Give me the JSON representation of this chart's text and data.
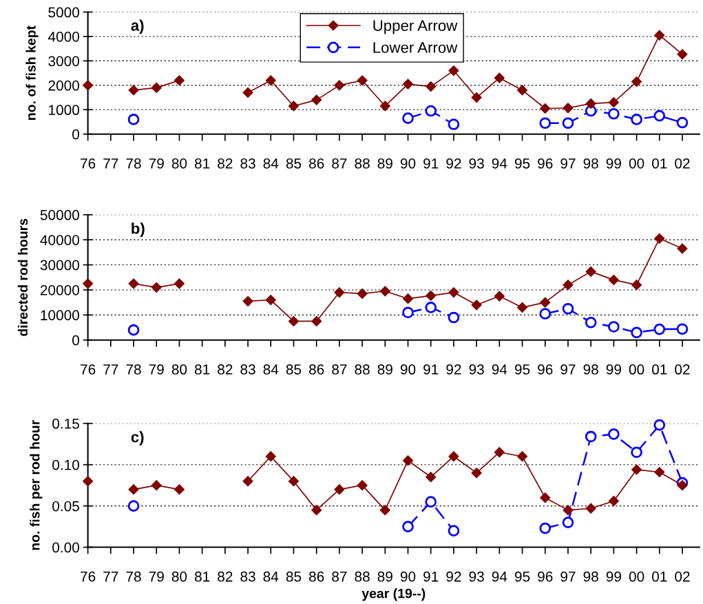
{
  "chart_data": [
    {
      "type": "line",
      "title": "a)",
      "ylabel": "no. of fish kept",
      "categories": [
        "76",
        "77",
        "78",
        "79",
        "80",
        "81",
        "82",
        "83",
        "84",
        "85",
        "86",
        "87",
        "88",
        "89",
        "90",
        "91",
        "92",
        "93",
        "94",
        "95",
        "96",
        "97",
        "98",
        "99",
        "00",
        "01",
        "02"
      ],
      "series": [
        {
          "name": "Upper Arrow",
          "color": "#800000",
          "marker": "diamond",
          "line_style": "solid",
          "values": [
            2000,
            null,
            1800,
            1900,
            2200,
            null,
            null,
            1700,
            2200,
            1150,
            1400,
            2000,
            2200,
            1150,
            2050,
            1950,
            2600,
            1500,
            2300,
            1800,
            1050,
            1070,
            1250,
            1300,
            2150,
            4050,
            3270
          ]
        },
        {
          "name": "Lower Arrow",
          "color": "#0000ff",
          "marker": "circle",
          "line_style": "dashed",
          "values": [
            null,
            null,
            600,
            null,
            null,
            null,
            null,
            null,
            null,
            null,
            null,
            null,
            null,
            null,
            650,
            950,
            400,
            null,
            null,
            null,
            450,
            450,
            950,
            830,
            600,
            750,
            470
          ]
        }
      ],
      "ylim": [
        0,
        5000
      ],
      "yticks": [
        0,
        1000,
        2000,
        3000,
        4000,
        5000
      ],
      "grid": "y",
      "legend": "top"
    },
    {
      "type": "line",
      "title": "b)",
      "ylabel": "directed rod hours",
      "categories": [
        "76",
        "77",
        "78",
        "79",
        "80",
        "81",
        "82",
        "83",
        "84",
        "85",
        "86",
        "87",
        "88",
        "89",
        "90",
        "91",
        "92",
        "93",
        "94",
        "95",
        "96",
        "97",
        "98",
        "99",
        "00",
        "01",
        "02"
      ],
      "series": [
        {
          "color": "#800000",
          "marker": "diamond",
          "line_style": "solid",
          "values": [
            22500,
            null,
            22500,
            21000,
            22500,
            null,
            null,
            15500,
            16000,
            7500,
            7500,
            19000,
            18500,
            19500,
            16500,
            17700,
            19000,
            14000,
            17500,
            13000,
            15000,
            22000,
            27300,
            24000,
            22000,
            40500,
            36500
          ]
        },
        {
          "color": "#0000ff",
          "marker": "circle",
          "line_style": "dashed",
          "values": [
            null,
            null,
            4000,
            null,
            null,
            null,
            null,
            null,
            null,
            null,
            null,
            null,
            null,
            null,
            11000,
            13000,
            9000,
            null,
            null,
            null,
            10500,
            12500,
            7000,
            5300,
            3000,
            4300,
            4400
          ]
        }
      ],
      "ylim": [
        0,
        50000
      ],
      "yticks": [
        0,
        10000,
        20000,
        30000,
        40000,
        50000
      ],
      "grid": "y"
    },
    {
      "type": "line",
      "title": "c)",
      "ylabel": "no. fish per rod hour",
      "xlabel": "year (19--)",
      "categories": [
        "76",
        "77",
        "78",
        "79",
        "80",
        "81",
        "82",
        "83",
        "84",
        "85",
        "86",
        "87",
        "88",
        "89",
        "90",
        "91",
        "92",
        "93",
        "94",
        "95",
        "96",
        "97",
        "98",
        "99",
        "00",
        "01",
        "02"
      ],
      "series": [
        {
          "color": "#800000",
          "marker": "diamond",
          "line_style": "solid",
          "values": [
            0.08,
            null,
            0.07,
            0.075,
            0.07,
            null,
            null,
            0.08,
            0.11,
            0.08,
            0.045,
            0.07,
            0.075,
            0.045,
            0.105,
            0.085,
            0.11,
            0.09,
            0.115,
            0.11,
            0.06,
            0.045,
            0.047,
            0.056,
            0.094,
            0.091,
            0.075
          ]
        },
        {
          "color": "#0000ff",
          "marker": "circle",
          "line_style": "dashed",
          "values": [
            null,
            null,
            0.05,
            null,
            null,
            null,
            null,
            null,
            null,
            null,
            null,
            null,
            null,
            null,
            0.025,
            0.055,
            0.02,
            null,
            null,
            null,
            0.023,
            0.03,
            0.134,
            0.137,
            0.115,
            0.148,
            0.078
          ]
        }
      ],
      "ylim": [
        0,
        0.15
      ],
      "yticks": [
        {
          "value": 0,
          "label": "0.00"
        },
        {
          "value": 0.05,
          "label": "0.05"
        },
        {
          "value": 0.1,
          "label": "0.10"
        },
        {
          "value": 0.15,
          "label": "0.15"
        }
      ],
      "grid": "y"
    }
  ]
}
